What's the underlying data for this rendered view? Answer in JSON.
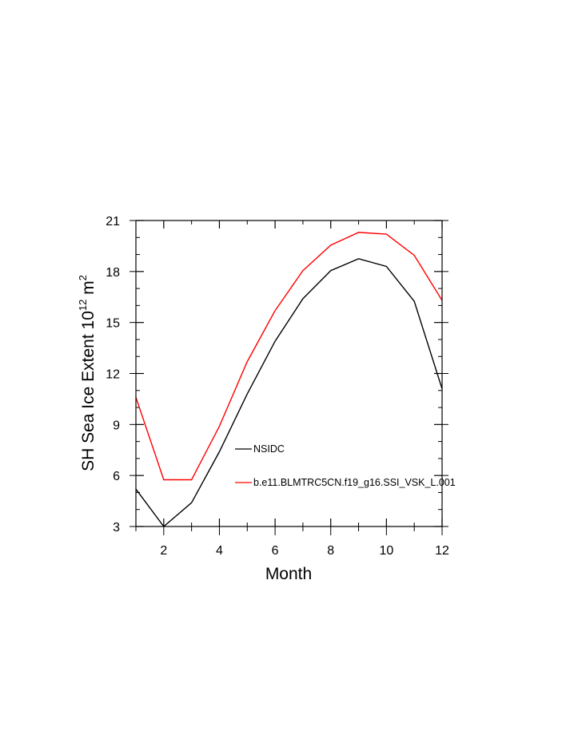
{
  "chart_data": {
    "type": "line",
    "title": "",
    "xlabel": "Month",
    "ylabel_main": "SH Sea Ice Extent 10",
    "ylabel_exp1": "12",
    "ylabel_mid": " m",
    "ylabel_exp2": "2",
    "xlim": [
      1,
      12
    ],
    "ylim": [
      3,
      21
    ],
    "xticks": [
      2,
      4,
      6,
      8,
      10,
      12
    ],
    "yticks": [
      3,
      6,
      9,
      12,
      15,
      18,
      21
    ],
    "grid": false,
    "legend_position": "inside-lower-right",
    "series": [
      {
        "name": "NSIDC",
        "color": "#000000",
        "x": [
          1,
          2,
          3,
          4,
          5,
          6,
          7,
          8,
          9,
          10,
          11,
          12
        ],
        "y": [
          5.2,
          3.0,
          4.4,
          7.4,
          10.8,
          13.9,
          16.4,
          18.05,
          18.75,
          18.3,
          16.25,
          11.1
        ]
      },
      {
        "name": "b.e11.BLMTRC5CN.f19_g16.SSI_VSK_L.001",
        "color": "#ff0000",
        "x": [
          1,
          2,
          3,
          4,
          5,
          6,
          7,
          8,
          9,
          10,
          11,
          12
        ],
        "y": [
          10.6,
          5.75,
          5.75,
          8.9,
          12.7,
          15.7,
          18.05,
          19.55,
          20.3,
          20.2,
          18.95,
          16.3
        ]
      }
    ]
  }
}
